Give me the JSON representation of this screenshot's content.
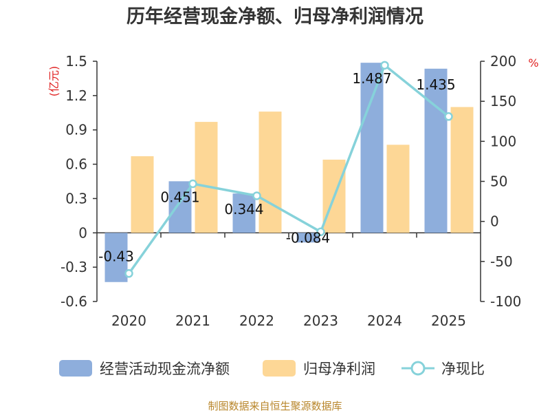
{
  "chart_data": {
    "type": "bar",
    "title": "历年经营现金净额、归母净利润情况",
    "categories": [
      "2020",
      "2021",
      "2022",
      "2023",
      "2024",
      "2025"
    ],
    "series": [
      {
        "name": "经营活动现金流净额",
        "axis": "left",
        "kind": "bar",
        "color": "#8eaedc",
        "values": [
          -0.43,
          0.451,
          0.344,
          -0.084,
          1.487,
          1.435
        ],
        "labels": [
          "-0.43",
          "0.451",
          "0.344",
          "-0.084",
          "1.487",
          "1.435"
        ]
      },
      {
        "name": "归母净利润",
        "axis": "left",
        "kind": "bar",
        "color": "#fdd796",
        "values": [
          0.67,
          0.97,
          1.06,
          0.64,
          0.77,
          1.1
        ]
      },
      {
        "name": "净现比",
        "axis": "right",
        "kind": "line",
        "color": "#86d2da",
        "values": [
          -65,
          47,
          32,
          -13,
          195,
          131
        ]
      }
    ],
    "y_left": {
      "unit": "(亿元)",
      "ylim": [
        -0.6,
        1.5
      ],
      "ticks": [
        "1.5",
        "1.2",
        "0.9",
        "0.6",
        "0.3",
        "0",
        "-0.3",
        "-0.6"
      ],
      "tick_values": [
        1.5,
        1.2,
        0.9,
        0.6,
        0.3,
        0,
        -0.3,
        -0.6
      ]
    },
    "y_right": {
      "unit": "%",
      "ylim": [
        -100,
        200
      ],
      "ticks": [
        "200",
        "150",
        "100",
        "50",
        "0",
        "-50",
        "-100"
      ],
      "tick_values": [
        200,
        150,
        100,
        50,
        0,
        -50,
        -100
      ]
    },
    "legend_position": "bottom"
  },
  "source": "制图数据来自恒生聚源数据库",
  "colors": {
    "axis": "#333333",
    "unit": "#e02020",
    "source": "#b8862b"
  }
}
